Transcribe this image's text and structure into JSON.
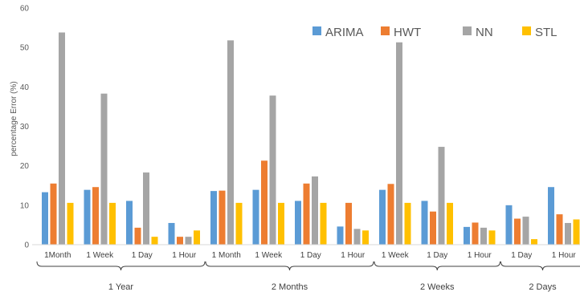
{
  "chart_data": {
    "type": "bar",
    "ylabel": "percentage Error (%)",
    "ylim": [
      0,
      60
    ],
    "yticks": [
      0,
      10,
      20,
      30,
      40,
      50,
      60
    ],
    "grid": false,
    "legend_position": "top-right",
    "series": [
      {
        "name": "ARIMA",
        "color": "#5B9BD5"
      },
      {
        "name": "HWT",
        "color": "#ED7D31"
      },
      {
        "name": "NN",
        "color": "#A5A5A5"
      },
      {
        "name": "STL",
        "color": "#FFC000"
      }
    ],
    "groups": [
      {
        "label": "1 Year",
        "categories": [
          {
            "label": "1Month",
            "values": [
              13.3,
              15.5,
              53.8,
              10.6
            ]
          },
          {
            "label": "1 Week",
            "values": [
              13.9,
              14.6,
              38.3,
              10.6
            ]
          },
          {
            "label": "1 Day",
            "values": [
              11.1,
              4.3,
              18.3,
              2.0
            ]
          },
          {
            "label": "1 Hour",
            "values": [
              5.5,
              2.0,
              2.0,
              3.6
            ]
          }
        ]
      },
      {
        "label": "2 Months",
        "categories": [
          {
            "label": "1 Month",
            "values": [
              13.6,
              13.7,
              51.8,
              10.6
            ]
          },
          {
            "label": "1 Week",
            "values": [
              13.9,
              21.3,
              37.8,
              10.6
            ]
          },
          {
            "label": "1 Day",
            "values": [
              11.1,
              15.5,
              17.3,
              10.6
            ]
          },
          {
            "label": "1 Hour",
            "values": [
              4.6,
              10.6,
              4.0,
              3.6
            ]
          }
        ]
      },
      {
        "label": "2 Weeks",
        "categories": [
          {
            "label": "1 Week",
            "values": [
              13.9,
              15.4,
              51.3,
              10.6
            ]
          },
          {
            "label": "1 Day",
            "values": [
              11.1,
              8.4,
              24.8,
              10.6
            ]
          },
          {
            "label": "1 Hour",
            "values": [
              4.5,
              5.6,
              4.3,
              3.6
            ]
          }
        ]
      },
      {
        "label": "2 Days",
        "categories": [
          {
            "label": "1 Day",
            "values": [
              10.0,
              6.6,
              7.1,
              1.4
            ]
          },
          {
            "label": "1 Hour",
            "values": [
              14.6,
              7.7,
              5.5,
              6.4
            ]
          }
        ]
      }
    ]
  }
}
